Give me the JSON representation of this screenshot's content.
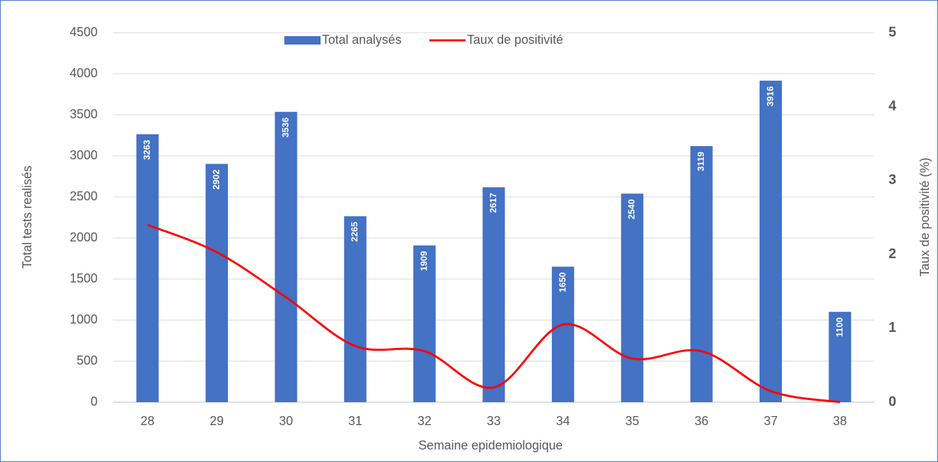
{
  "chart_data": {
    "type": "bar_line",
    "x_label": "Semaine epidemiologique",
    "y_label": "Total tests realisés",
    "y2_label": "Taux de positivité (%)",
    "categories": [
      "28",
      "29",
      "30",
      "31",
      "32",
      "33",
      "34",
      "35",
      "36",
      "37",
      "38"
    ],
    "series": [
      {
        "name": "Total analysés",
        "type": "bar",
        "color": "#4472c4",
        "values": [
          3263,
          2902,
          3536,
          2265,
          1909,
          2617,
          1650,
          2540,
          3119,
          3916,
          1100
        ]
      },
      {
        "name": "Taux de positivité",
        "type": "line",
        "axis": "y2",
        "color": "#ff0000",
        "smooth": true,
        "values": [
          2.4,
          2.03,
          1.42,
          0.76,
          0.69,
          0.2,
          1.05,
          0.59,
          0.69,
          0.15,
          0
        ]
      }
    ],
    "ylim": [
      0,
      4500
    ],
    "yticks": [
      0,
      500,
      1000,
      1500,
      2000,
      2500,
      3000,
      3500,
      4000,
      4500
    ],
    "y2lim": [
      0,
      5
    ],
    "y2ticks": [
      0,
      1,
      2,
      3,
      4,
      5
    ],
    "grid": true,
    "legend": "top"
  }
}
